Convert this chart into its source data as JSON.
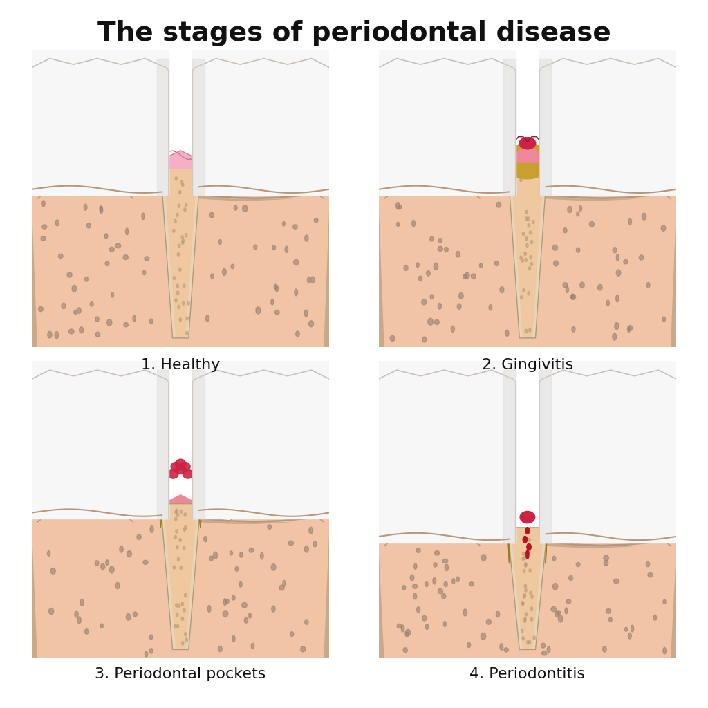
{
  "title": "The stages of periodontal disease",
  "labels": [
    "1. Healthy",
    "2. Gingivitis",
    "3. Periodontal pockets",
    "4. Periodontitis"
  ],
  "bg": "#ffffff",
  "tooth_fill": "#f7f7f7",
  "tooth_grad_edge": "#c8c0b8",
  "tooth_shadow_l": "#d8d5d0",
  "tooth_shadow_r": "#e0ddd8",
  "gum_fill": "#f0c4a4",
  "gum_border": "#b8967a",
  "bone_inner": "#f0c4a4",
  "bone_outer": "#c8aa8a",
  "bone_dot": "#9a8070",
  "root_fill": "#e8d5b8",
  "root_canal_fill": "#f0c8a0",
  "root_border": "#b09878",
  "gum_tissue_h": "#f5b0c5",
  "gum_tissue_h_edge": "#d07090",
  "tartar_fill": "#c8a030",
  "tartar_edge": "#a07820",
  "inflamed_fill": "#cc2244",
  "inflamed_pink": "#ee8899",
  "blood_fill": "#bb1122",
  "title_fs": 28,
  "label_fs": 16
}
